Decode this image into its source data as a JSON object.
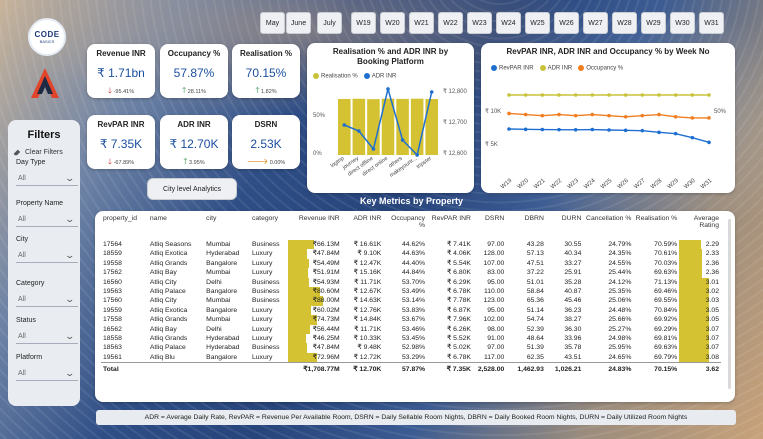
{
  "logo": {
    "line1": "CODE",
    "line2": "BASICS"
  },
  "months": [
    "May",
    "June",
    "July"
  ],
  "weeks": [
    "W19",
    "W20",
    "W21",
    "W22",
    "W23",
    "W24",
    "W25",
    "W26",
    "W27",
    "W28",
    "W29",
    "W30",
    "W31"
  ],
  "filters": {
    "title": "Filters",
    "clear": "Clear Filters",
    "items": [
      {
        "label": "Day Type",
        "value": "All"
      },
      {
        "label": "Property Name",
        "value": "All"
      },
      {
        "label": "City",
        "value": "All"
      },
      {
        "label": "Category",
        "value": "All"
      },
      {
        "label": "Status",
        "value": "All"
      },
      {
        "label": "Platform",
        "value": "All"
      }
    ]
  },
  "kpis": [
    {
      "title": "Revenue INR",
      "value": "₹ 1.71bn",
      "delta": "-95.41%",
      "dir": "down"
    },
    {
      "title": "Occupancy %",
      "value": "57.87%",
      "delta": "28.11%",
      "dir": "up"
    },
    {
      "title": "Realisation %",
      "value": "70.15%",
      "delta": "1.82%",
      "dir": "up"
    },
    {
      "title": "RevPAR INR",
      "value": "₹ 7.35K",
      "delta": "-67.89%",
      "dir": "down"
    },
    {
      "title": "ADR INR",
      "value": "₹ 12.70K",
      "delta": "3.95%",
      "dir": "up"
    },
    {
      "title": "DSRN",
      "value": "2.53K",
      "delta": "0.00%",
      "dir": "flat"
    }
  ],
  "city_button": "City level Analytics",
  "chart_data": [
    {
      "type": "bar",
      "title": "Realisation % and ADR INR by Booking Platform",
      "legend": [
        "Realisation %",
        "ADR INR"
      ],
      "categories": [
        "logtrip",
        "journey",
        "direct offline",
        "direct online",
        "others",
        "makeyourtr...",
        "tripster"
      ],
      "series": [
        {
          "name": "Realisation %",
          "values": [
            70.0,
            70.3,
            69.8,
            70.5,
            70.1,
            70.4,
            70.0
          ]
        },
        {
          "name": "ADR INR",
          "values": [
            12700,
            12680,
            12620,
            12820,
            12650,
            12600,
            12810
          ]
        }
      ],
      "y_left_ticks": [
        "50%",
        "0%"
      ],
      "y_right_ticks": [
        "₹ 12,800",
        "₹ 12,700",
        "₹ 12,600"
      ],
      "colors": {
        "bar": "#d4c232",
        "line": "#1f6fd1"
      }
    },
    {
      "type": "line",
      "title": "RevPAR INR, ADR INR and Occupancy % by Week No",
      "legend": [
        "RevPAR INR",
        "ADR INR",
        "Occupancy %"
      ],
      "categories": [
        "W19",
        "W20",
        "W21",
        "W22",
        "W23",
        "W24",
        "W25",
        "W26",
        "W27",
        "W28",
        "W29",
        "W30",
        "W31"
      ],
      "series": [
        {
          "name": "RevPAR INR",
          "values": [
            7500,
            7450,
            7420,
            7400,
            7380,
            7420,
            7350,
            7300,
            7250,
            7000,
            6800,
            6200,
            5500
          ]
        },
        {
          "name": "ADR INR",
          "values": [
            12700,
            12700,
            12700,
            12700,
            12700,
            12700,
            12700,
            12700,
            12700,
            12700,
            12700,
            12700,
            12700
          ]
        },
        {
          "name": "Occupancy %",
          "values": [
            59,
            58,
            57,
            58,
            57,
            58,
            57,
            56,
            57,
            58,
            56,
            55,
            55
          ]
        }
      ],
      "y_left_ticks": [
        "₹ 10K",
        "₹ 5K"
      ],
      "y_right_ticks": [
        "50%"
      ],
      "colors": {
        "RevPAR INR": "#1f6fd1",
        "ADR INR": "#c7c23a",
        "Occupancy %": "#f07d1f"
      }
    }
  ],
  "table": {
    "title": "Key Metrics by Property",
    "columns": [
      "property_id",
      "name",
      "city",
      "category",
      "Revenue INR",
      "ADR INR",
      "Occupancy %",
      "RevPAR INR",
      "DSRN",
      "DBRN",
      "DURN",
      "Cancellation %",
      "Realisation %",
      "Average Rating"
    ],
    "rows": [
      [
        "17564",
        "Atliq Seasons",
        "Mumbai",
        "Business",
        "₹66.13M",
        "₹ 16.61K",
        "44.62%",
        "₹ 7.41K",
        "97.00",
        "43.28",
        "30.55",
        "24.79%",
        "70.59%",
        "2.29"
      ],
      [
        "18559",
        "Atliq Exotica",
        "Hyderabad",
        "Luxury",
        "₹47.84M",
        "₹ 9.10K",
        "44.63%",
        "₹ 4.06K",
        "128.00",
        "57.13",
        "40.34",
        "24.35%",
        "70.61%",
        "2.33"
      ],
      [
        "19558",
        "Atliq Grands",
        "Bangalore",
        "Luxury",
        "₹54.49M",
        "₹ 12.47K",
        "44.40%",
        "₹ 5.54K",
        "107.00",
        "47.51",
        "33.27",
        "24.55%",
        "70.03%",
        "2.36"
      ],
      [
        "17562",
        "Atliq Bay",
        "Mumbai",
        "Luxury",
        "₹51.91M",
        "₹ 15.16K",
        "44.84%",
        "₹ 6.80K",
        "83.00",
        "37.22",
        "25.91",
        "25.44%",
        "69.63%",
        "2.36"
      ],
      [
        "16560",
        "Atliq City",
        "Delhi",
        "Business",
        "₹54.93M",
        "₹ 11.71K",
        "53.70%",
        "₹ 6.29K",
        "95.00",
        "51.01",
        "35.28",
        "24.12%",
        "71.13%",
        "3.01"
      ],
      [
        "19563",
        "Atliq Palace",
        "Bangalore",
        "Business",
        "₹80.60M",
        "₹ 12.67K",
        "53.49%",
        "₹ 6.78K",
        "110.00",
        "58.84",
        "40.87",
        "25.35%",
        "69.46%",
        "3.02"
      ],
      [
        "17560",
        "Atliq City",
        "Mumbai",
        "Business",
        "₹88.00M",
        "₹ 14.63K",
        "53.14%",
        "₹ 7.78K",
        "123.00",
        "65.36",
        "45.46",
        "25.06%",
        "69.55%",
        "3.03"
      ],
      [
        "19559",
        "Atliq Exotica",
        "Bangalore",
        "Luxury",
        "₹60.02M",
        "₹ 12.76K",
        "53.83%",
        "₹ 6.87K",
        "95.00",
        "51.14",
        "36.23",
        "24.48%",
        "70.84%",
        "3.05"
      ],
      [
        "17558",
        "Atliq Grands",
        "Mumbai",
        "Luxury",
        "₹74.73M",
        "₹ 14.84K",
        "53.67%",
        "₹ 7.96K",
        "102.00",
        "54.74",
        "38.27",
        "25.66%",
        "69.92%",
        "3.05"
      ],
      [
        "16562",
        "Atliq Bay",
        "Delhi",
        "Luxury",
        "₹56.44M",
        "₹ 11.71K",
        "53.46%",
        "₹ 6.26K",
        "98.00",
        "52.39",
        "36.30",
        "25.27%",
        "69.29%",
        "3.07"
      ],
      [
        "18558",
        "Atliq Grands",
        "Hyderabad",
        "Luxury",
        "₹46.25M",
        "₹ 10.33K",
        "53.45%",
        "₹ 5.52K",
        "91.00",
        "48.64",
        "33.96",
        "24.98%",
        "69.81%",
        "3.07"
      ],
      [
        "18563",
        "Atliq Palace",
        "Hyderabad",
        "Business",
        "₹47.84M",
        "₹ 9.48K",
        "52.98%",
        "₹ 5.02K",
        "97.00",
        "51.39",
        "35.78",
        "25.95%",
        "69.63%",
        "3.07"
      ],
      [
        "19561",
        "Atliq Blu",
        "Bangalore",
        "Luxury",
        "₹72.96M",
        "₹ 12.72K",
        "53.29%",
        "₹ 6.78K",
        "117.00",
        "62.35",
        "43.51",
        "24.65%",
        "69.79%",
        "3.08"
      ]
    ],
    "revenue_fraction": [
      0.75,
      0.54,
      0.62,
      0.59,
      0.62,
      0.92,
      1.0,
      0.68,
      0.85,
      0.64,
      0.53,
      0.54,
      0.83
    ],
    "rating_fraction": [
      0.74,
      0.76,
      0.77,
      0.77,
      0.98,
      0.98,
      0.98,
      0.99,
      0.99,
      1.0,
      1.0,
      1.0,
      1.0
    ],
    "total": [
      "Total",
      "",
      "",
      "",
      "₹1,708.77M",
      "₹ 12.70K",
      "57.87%",
      "₹ 7.35K",
      "2,528.00",
      "1,462.93",
      "1,026.21",
      "24.83%",
      "70.15%",
      "3.62"
    ]
  },
  "footer": "ADR = Average Daily Rate, RevPAR = Revenue Per Available Room, DSRN = Daily Sellable Room Nights, DBRN = Daily Booked Room Nights, DURN = Daily Utilized Room Nights"
}
